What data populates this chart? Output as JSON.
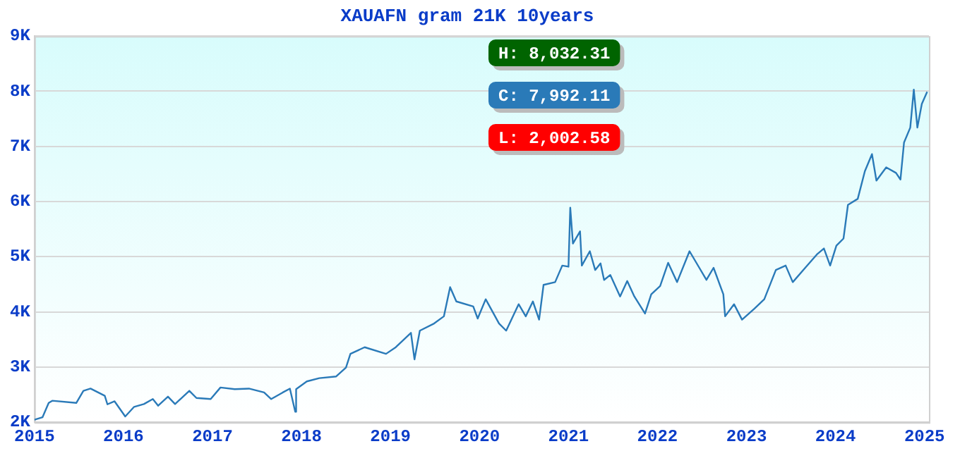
{
  "chart_data": {
    "type": "line",
    "title": "XAUAFN gram 21K 10years",
    "x": [
      2015.0,
      2015.09,
      2015.16,
      2015.2,
      2015.47,
      2015.55,
      2015.63,
      2015.79,
      2015.82,
      2015.9,
      2016.02,
      2016.12,
      2016.23,
      2016.33,
      2016.39,
      2016.5,
      2016.58,
      2016.74,
      2016.82,
      2016.98,
      2017.09,
      2017.25,
      2017.41,
      2017.58,
      2017.66,
      2017.79,
      2017.87,
      2017.93,
      2017.94,
      2018.06,
      2018.2,
      2018.39,
      2018.5,
      2018.55,
      2018.71,
      2018.95,
      2019.06,
      2019.23,
      2019.27,
      2019.33,
      2019.49,
      2019.6,
      2019.67,
      2019.74,
      2019.93,
      2019.98,
      2020.07,
      2020.22,
      2020.3,
      2020.44,
      2020.52,
      2020.6,
      2020.67,
      2020.72,
      2020.85,
      2020.93,
      2021.0,
      2021.02,
      2021.05,
      2021.13,
      2021.15,
      2021.24,
      2021.3,
      2021.36,
      2021.4,
      2021.47,
      2021.58,
      2021.66,
      2021.74,
      2021.86,
      2021.93,
      2022.03,
      2022.12,
      2022.22,
      2022.36,
      2022.47,
      2022.55,
      2022.63,
      2022.74,
      2022.76,
      2022.86,
      2022.95,
      2023.09,
      2023.2,
      2023.33,
      2023.44,
      2023.52,
      2023.66,
      2023.79,
      2023.87,
      2023.94,
      2024.01,
      2024.09,
      2024.14,
      2024.25,
      2024.33,
      2024.41,
      2024.46,
      2024.57,
      2024.68,
      2024.73,
      2024.77,
      2024.84,
      2024.88,
      2024.92,
      2024.97,
      2025.03
    ],
    "series": [
      {
        "color": "#2a7ab8",
        "values": [
          2045,
          2090,
          2350,
          2390,
          2350,
          2570,
          2610,
          2480,
          2325,
          2380,
          2105,
          2280,
          2330,
          2420,
          2300,
          2465,
          2330,
          2570,
          2440,
          2420,
          2630,
          2600,
          2610,
          2540,
          2420,
          2540,
          2610,
          2190,
          2600,
          2740,
          2800,
          2830,
          2990,
          3240,
          3360,
          3240,
          3360,
          3620,
          3140,
          3660,
          3790,
          3920,
          4450,
          4190,
          4100,
          3880,
          4230,
          3790,
          3660,
          4140,
          3920,
          4190,
          3860,
          4490,
          4540,
          4840,
          4820,
          5890,
          5240,
          5460,
          4840,
          5100,
          4760,
          4880,
          4580,
          4670,
          4280,
          4560,
          4280,
          3970,
          4320,
          4470,
          4890,
          4540,
          5100,
          4800,
          4580,
          4800,
          4320,
          3920,
          4140,
          3860,
          4060,
          4230,
          4760,
          4840,
          4540,
          4800,
          5040,
          5150,
          4840,
          5200,
          5330,
          5940,
          6050,
          6550,
          6860,
          6380,
          6620,
          6520,
          6400,
          7070,
          7340,
          8030,
          7340,
          7770,
          7990
        ]
      }
    ],
    "xlim": [
      2015,
      2025.05
    ],
    "xticks": [
      2015,
      2016,
      2017,
      2018,
      2019,
      2020,
      2021,
      2022,
      2023,
      2024,
      2025
    ],
    "ylim": [
      2000,
      9000
    ],
    "yticks": [
      {
        "value": 2000,
        "label": "2K"
      },
      {
        "value": 3000,
        "label": "3K"
      },
      {
        "value": 4000,
        "label": "4K"
      },
      {
        "value": 5000,
        "label": "5K"
      },
      {
        "value": 6000,
        "label": "6K"
      },
      {
        "value": 7000,
        "label": "7K"
      },
      {
        "value": 8000,
        "label": "8K"
      },
      {
        "value": 9000,
        "label": "9K"
      }
    ],
    "grid": "y",
    "marker": "none",
    "line_style": "solid",
    "legend": false,
    "annotations": [
      "H: 8,032.31",
      "C: 7,992.11",
      "L: 2,002.58"
    ]
  }
}
